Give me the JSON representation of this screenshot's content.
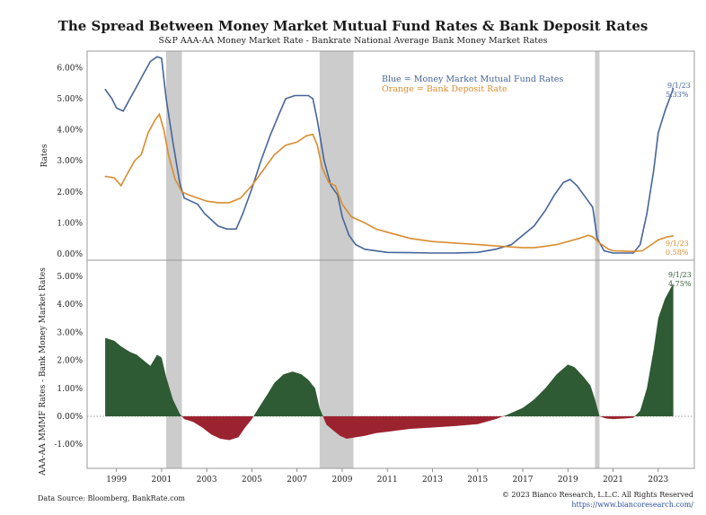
{
  "title": "The Spread Between Money Market Mutual Fund Rates & Bank Deposit Rates",
  "subtitle": "S&P AAA-AA Money Market Rate - Bankrate National Average Bank Money Market Rates",
  "footer": {
    "source": "Data Source: Bloomberg, BankRate.com",
    "copyright": "© 2023 Bianco Research, L.L.C. All Rights Reserved",
    "url": "https://www.biancoresearch.com/"
  },
  "colors": {
    "mmmf": "#46659a",
    "deposit": "#d98c2e",
    "spread_pos": "#2e5a34",
    "spread_neg": "#9b2330",
    "recession": "#cccccc"
  },
  "chart_data": [
    {
      "type": "line",
      "ylabel": "Rates",
      "ylim": [
        0,
        6.5
      ],
      "yticks": [
        "0.00%",
        "1.00%",
        "2.00%",
        "3.00%",
        "4.00%",
        "5.00%",
        "6.00%"
      ],
      "legend_placement": "top-center",
      "legend": [
        "Blue = Money Market Mutual Fund Rates",
        "Orange = Bank Deposit Rate"
      ],
      "recessions": [
        [
          2001.2,
          2001.9
        ],
        [
          2008.0,
          2009.5
        ],
        [
          2020.2,
          2020.4
        ]
      ],
      "series": [
        {
          "name": "Blue = Money Market Mutual Fund Rates",
          "color": "#46659a",
          "points": [
            [
              1998.5,
              5.3
            ],
            [
              1998.8,
              5.0
            ],
            [
              1999.0,
              4.7
            ],
            [
              1999.3,
              4.6
            ],
            [
              1999.6,
              5.0
            ],
            [
              1999.9,
              5.4
            ],
            [
              2000.2,
              5.8
            ],
            [
              2000.5,
              6.2
            ],
            [
              2000.8,
              6.35
            ],
            [
              2001.0,
              6.3
            ],
            [
              2001.2,
              5.0
            ],
            [
              2001.5,
              3.6
            ],
            [
              2001.8,
              2.3
            ],
            [
              2002.0,
              1.8
            ],
            [
              2002.3,
              1.7
            ],
            [
              2002.6,
              1.6
            ],
            [
              2002.9,
              1.3
            ],
            [
              2003.2,
              1.1
            ],
            [
              2003.5,
              0.9
            ],
            [
              2003.9,
              0.8
            ],
            [
              2004.3,
              0.8
            ],
            [
              2004.6,
              1.3
            ],
            [
              2005.0,
              2.1
            ],
            [
              2005.4,
              3.0
            ],
            [
              2005.8,
              3.8
            ],
            [
              2006.2,
              4.5
            ],
            [
              2006.5,
              5.0
            ],
            [
              2006.9,
              5.1
            ],
            [
              2007.5,
              5.1
            ],
            [
              2007.7,
              5.0
            ],
            [
              2007.9,
              4.3
            ],
            [
              2008.2,
              3.0
            ],
            [
              2008.5,
              2.2
            ],
            [
              2008.8,
              1.9
            ],
            [
              2009.0,
              1.2
            ],
            [
              2009.3,
              0.6
            ],
            [
              2009.6,
              0.3
            ],
            [
              2010.0,
              0.15
            ],
            [
              2011.0,
              0.05
            ],
            [
              2012.0,
              0.04
            ],
            [
              2013.0,
              0.03
            ],
            [
              2014.0,
              0.03
            ],
            [
              2015.0,
              0.05
            ],
            [
              2015.8,
              0.15
            ],
            [
              2016.5,
              0.3
            ],
            [
              2017.0,
              0.6
            ],
            [
              2017.5,
              0.9
            ],
            [
              2018.0,
              1.4
            ],
            [
              2018.4,
              1.9
            ],
            [
              2018.8,
              2.3
            ],
            [
              2019.1,
              2.4
            ],
            [
              2019.4,
              2.2
            ],
            [
              2019.8,
              1.8
            ],
            [
              2020.1,
              1.5
            ],
            [
              2020.3,
              0.5
            ],
            [
              2020.6,
              0.1
            ],
            [
              2021.0,
              0.03
            ],
            [
              2021.9,
              0.03
            ],
            [
              2022.2,
              0.3
            ],
            [
              2022.5,
              1.3
            ],
            [
              2022.8,
              2.7
            ],
            [
              2023.0,
              3.9
            ],
            [
              2023.3,
              4.6
            ],
            [
              2023.67,
              5.33
            ]
          ]
        },
        {
          "name": "Orange = Bank Deposit Rate",
          "color": "#d98c2e",
          "points": [
            [
              1998.5,
              2.5
            ],
            [
              1998.9,
              2.45
            ],
            [
              1999.2,
              2.2
            ],
            [
              1999.5,
              2.6
            ],
            [
              1999.8,
              3.0
            ],
            [
              2000.1,
              3.2
            ],
            [
              2000.4,
              3.9
            ],
            [
              2000.7,
              4.3
            ],
            [
              2000.9,
              4.5
            ],
            [
              2001.1,
              4.0
            ],
            [
              2001.3,
              3.2
            ],
            [
              2001.6,
              2.4
            ],
            [
              2001.9,
              2.0
            ],
            [
              2002.2,
              1.9
            ],
            [
              2002.6,
              1.8
            ],
            [
              2003.0,
              1.7
            ],
            [
              2003.5,
              1.65
            ],
            [
              2004.0,
              1.65
            ],
            [
              2004.5,
              1.8
            ],
            [
              2005.0,
              2.2
            ],
            [
              2005.5,
              2.7
            ],
            [
              2006.0,
              3.2
            ],
            [
              2006.5,
              3.5
            ],
            [
              2007.0,
              3.6
            ],
            [
              2007.4,
              3.8
            ],
            [
              2007.7,
              3.85
            ],
            [
              2007.9,
              3.5
            ],
            [
              2008.1,
              2.8
            ],
            [
              2008.4,
              2.3
            ],
            [
              2008.7,
              2.2
            ],
            [
              2009.0,
              1.6
            ],
            [
              2009.4,
              1.2
            ],
            [
              2010.0,
              1.0
            ],
            [
              2010.5,
              0.8
            ],
            [
              2011.0,
              0.7
            ],
            [
              2011.5,
              0.6
            ],
            [
              2012.0,
              0.5
            ],
            [
              2012.5,
              0.45
            ],
            [
              2013.0,
              0.4
            ],
            [
              2014.0,
              0.35
            ],
            [
              2015.0,
              0.3
            ],
            [
              2016.0,
              0.25
            ],
            [
              2017.0,
              0.2
            ],
            [
              2017.5,
              0.2
            ],
            [
              2018.0,
              0.25
            ],
            [
              2018.5,
              0.3
            ],
            [
              2019.0,
              0.4
            ],
            [
              2019.5,
              0.5
            ],
            [
              2019.9,
              0.6
            ],
            [
              2020.1,
              0.55
            ],
            [
              2020.4,
              0.35
            ],
            [
              2020.8,
              0.15
            ],
            [
              2021.0,
              0.1
            ],
            [
              2021.9,
              0.08
            ],
            [
              2022.3,
              0.1
            ],
            [
              2022.7,
              0.3
            ],
            [
              2023.0,
              0.45
            ],
            [
              2023.4,
              0.55
            ],
            [
              2023.67,
              0.58
            ]
          ]
        }
      ],
      "annotations": [
        {
          "series": 0,
          "date": "9/1/23",
          "value": "5.33%"
        },
        {
          "series": 1,
          "date": "9/1/23",
          "value": "0.58%"
        }
      ]
    },
    {
      "type": "area",
      "ylabel": "AAA-AA MMMF Rates - Bank Money Market Rates",
      "ylim": [
        -1.7,
        5.5
      ],
      "yticks": [
        "-1.00%",
        "0.00%",
        "1.00%",
        "2.00%",
        "3.00%",
        "4.00%",
        "5.00%"
      ],
      "xlabel": "",
      "xticks": [
        "1999",
        "2001",
        "2003",
        "2005",
        "2007",
        "2009",
        "2011",
        "2013",
        "2015",
        "2017",
        "2019",
        "2021",
        "2023"
      ],
      "xlim": [
        1997.7,
        2024.6
      ],
      "recessions": [
        [
          2001.2,
          2001.9
        ],
        [
          2008.0,
          2009.5
        ],
        [
          2020.2,
          2020.4
        ]
      ],
      "series": [
        {
          "name": "",
          "points": [
            [
              1998.5,
              2.8
            ],
            [
              1998.9,
              2.7
            ],
            [
              1999.2,
              2.5
            ],
            [
              1999.6,
              2.3
            ],
            [
              1999.9,
              2.2
            ],
            [
              2000.2,
              2.0
            ],
            [
              2000.5,
              1.8
            ],
            [
              2000.8,
              2.2
            ],
            [
              2001.0,
              2.1
            ],
            [
              2001.2,
              1.4
            ],
            [
              2001.5,
              0.6
            ],
            [
              2001.8,
              0.1
            ],
            [
              2002.0,
              -0.1
            ],
            [
              2002.4,
              -0.2
            ],
            [
              2002.8,
              -0.4
            ],
            [
              2003.2,
              -0.65
            ],
            [
              2003.6,
              -0.8
            ],
            [
              2004.0,
              -0.85
            ],
            [
              2004.4,
              -0.75
            ],
            [
              2004.7,
              -0.4
            ],
            [
              2005.0,
              -0.1
            ],
            [
              2005.3,
              0.3
            ],
            [
              2005.7,
              0.8
            ],
            [
              2006.0,
              1.2
            ],
            [
              2006.4,
              1.5
            ],
            [
              2006.8,
              1.6
            ],
            [
              2007.2,
              1.5
            ],
            [
              2007.5,
              1.3
            ],
            [
              2007.8,
              1.0
            ],
            [
              2008.0,
              0.3
            ],
            [
              2008.3,
              -0.3
            ],
            [
              2008.6,
              -0.5
            ],
            [
              2008.9,
              -0.7
            ],
            [
              2009.2,
              -0.8
            ],
            [
              2009.6,
              -0.75
            ],
            [
              2010.0,
              -0.7
            ],
            [
              2010.5,
              -0.6
            ],
            [
              2011.0,
              -0.55
            ],
            [
              2012.0,
              -0.45
            ],
            [
              2013.0,
              -0.4
            ],
            [
              2014.0,
              -0.35
            ],
            [
              2015.0,
              -0.28
            ],
            [
              2015.8,
              -0.1
            ],
            [
              2016.3,
              0.05
            ],
            [
              2017.0,
              0.3
            ],
            [
              2017.5,
              0.6
            ],
            [
              2018.0,
              1.0
            ],
            [
              2018.5,
              1.5
            ],
            [
              2019.0,
              1.85
            ],
            [
              2019.3,
              1.75
            ],
            [
              2019.7,
              1.4
            ],
            [
              2020.0,
              1.1
            ],
            [
              2020.2,
              0.6
            ],
            [
              2020.4,
              0.0
            ],
            [
              2020.7,
              -0.08
            ],
            [
              2021.0,
              -0.1
            ],
            [
              2021.5,
              -0.08
            ],
            [
              2021.9,
              -0.05
            ],
            [
              2022.2,
              0.2
            ],
            [
              2022.5,
              1.0
            ],
            [
              2022.8,
              2.4
            ],
            [
              2023.0,
              3.5
            ],
            [
              2023.3,
              4.2
            ],
            [
              2023.67,
              4.75
            ]
          ]
        }
      ],
      "annotations": [
        {
          "date": "9/1/23",
          "value": "4.75%"
        }
      ]
    }
  ]
}
